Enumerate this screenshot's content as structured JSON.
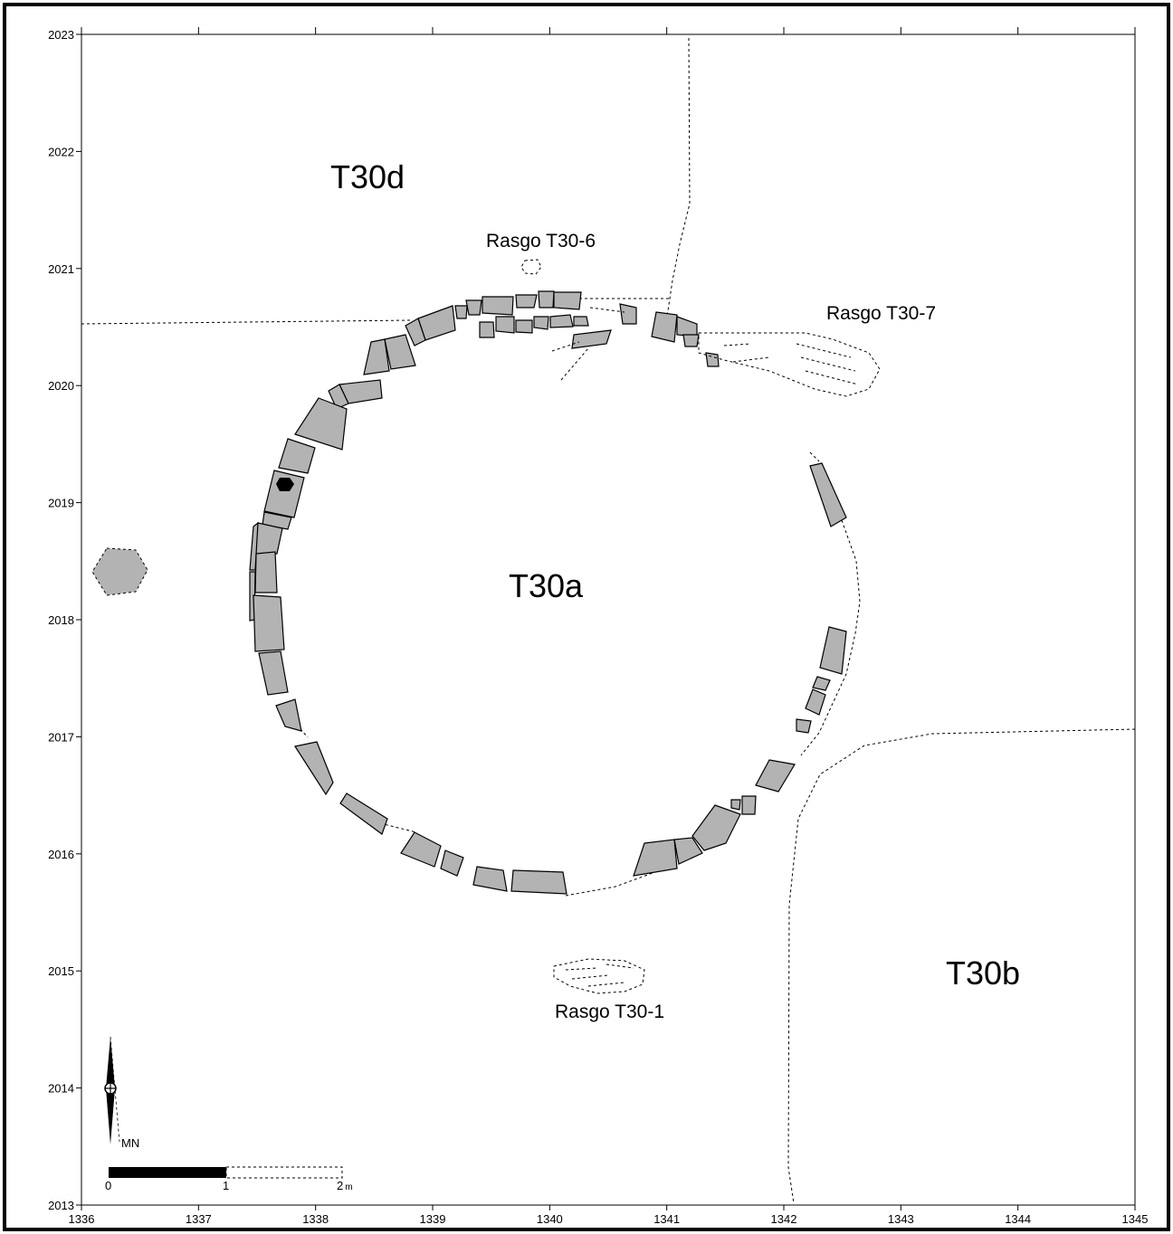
{
  "x_axis": {
    "min": 1336,
    "max": 1345,
    "ticks": [
      "1336",
      "1337",
      "1338",
      "1339",
      "1340",
      "1341",
      "1342",
      "1343",
      "1344",
      "1345"
    ]
  },
  "y_axis": {
    "min": 2013,
    "max": 2023,
    "ticks": [
      "2013",
      "2014",
      "2015",
      "2016",
      "2017",
      "2018",
      "2019",
      "2020",
      "2021",
      "2022",
      "2023"
    ]
  },
  "zones": {
    "t30d": "T30d",
    "t30a": "T30a",
    "t30b": "T30b"
  },
  "features": {
    "rasgo6": "Rasgo T30-6",
    "rasgo7": "Rasgo T30-7",
    "rasgo1": "Rasgo T30-1"
  },
  "north_arrow": {
    "label": "MN"
  },
  "scale_bar": {
    "label_0": "0",
    "label_1": "1",
    "label_2": "2",
    "unit": "m"
  },
  "colors": {
    "stone": "#b3b3b3",
    "ink": "#000000"
  }
}
